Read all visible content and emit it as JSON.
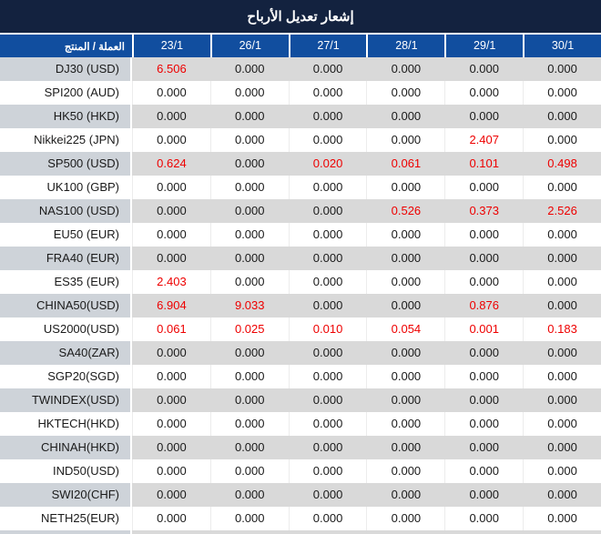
{
  "title": "إشعار تعديل الأرباح",
  "table": {
    "product_header": "العملة / المنتج",
    "date_headers": [
      "23/1",
      "26/1",
      "27/1",
      "28/1",
      "29/1",
      "30/1"
    ],
    "rows": [
      {
        "product": "DJ30 (USD)",
        "values": [
          "6.506",
          "0.000",
          "0.000",
          "0.000",
          "0.000",
          "0.000"
        ],
        "red": [
          1,
          0,
          0,
          0,
          0,
          0
        ]
      },
      {
        "product": "SPI200 (AUD)",
        "values": [
          "0.000",
          "0.000",
          "0.000",
          "0.000",
          "0.000",
          "0.000"
        ],
        "red": [
          0,
          0,
          0,
          0,
          0,
          0
        ]
      },
      {
        "product": "HK50 (HKD)",
        "values": [
          "0.000",
          "0.000",
          "0.000",
          "0.000",
          "0.000",
          "0.000"
        ],
        "red": [
          0,
          0,
          0,
          0,
          0,
          0
        ]
      },
      {
        "product": "Nikkei225 (JPN)",
        "values": [
          "0.000",
          "0.000",
          "0.000",
          "0.000",
          "2.407",
          "0.000"
        ],
        "red": [
          0,
          0,
          0,
          0,
          1,
          0
        ]
      },
      {
        "product": "SP500 (USD)",
        "values": [
          "0.624",
          "0.000",
          "0.020",
          "0.061",
          "0.101",
          "0.498"
        ],
        "red": [
          1,
          0,
          1,
          1,
          1,
          1
        ]
      },
      {
        "product": "UK100 (GBP)",
        "values": [
          "0.000",
          "0.000",
          "0.000",
          "0.000",
          "0.000",
          "0.000"
        ],
        "red": [
          0,
          0,
          0,
          0,
          0,
          0
        ]
      },
      {
        "product": "NAS100 (USD)",
        "values": [
          "0.000",
          "0.000",
          "0.000",
          "0.526",
          "0.373",
          "2.526"
        ],
        "red": [
          0,
          0,
          0,
          1,
          1,
          1
        ]
      },
      {
        "product": "EU50 (EUR)",
        "values": [
          "0.000",
          "0.000",
          "0.000",
          "0.000",
          "0.000",
          "0.000"
        ],
        "red": [
          0,
          0,
          0,
          0,
          0,
          0
        ]
      },
      {
        "product": "FRA40 (EUR)",
        "values": [
          "0.000",
          "0.000",
          "0.000",
          "0.000",
          "0.000",
          "0.000"
        ],
        "red": [
          0,
          0,
          0,
          0,
          0,
          0
        ]
      },
      {
        "product": "ES35 (EUR)",
        "values": [
          "2.403",
          "0.000",
          "0.000",
          "0.000",
          "0.000",
          "0.000"
        ],
        "red": [
          1,
          0,
          0,
          0,
          0,
          0
        ]
      },
      {
        "product": "CHINA50(USD)",
        "values": [
          "6.904",
          "9.033",
          "0.000",
          "0.000",
          "0.876",
          "0.000"
        ],
        "red": [
          1,
          1,
          0,
          0,
          1,
          0
        ]
      },
      {
        "product": "US2000(USD)",
        "values": [
          "0.061",
          "0.025",
          "0.010",
          "0.054",
          "0.001",
          "0.183"
        ],
        "red": [
          1,
          1,
          1,
          1,
          1,
          1
        ]
      },
      {
        "product": "SA40(ZAR)",
        "values": [
          "0.000",
          "0.000",
          "0.000",
          "0.000",
          "0.000",
          "0.000"
        ],
        "red": [
          0,
          0,
          0,
          0,
          0,
          0
        ]
      },
      {
        "product": "SGP20(SGD)",
        "values": [
          "0.000",
          "0.000",
          "0.000",
          "0.000",
          "0.000",
          "0.000"
        ],
        "red": [
          0,
          0,
          0,
          0,
          0,
          0
        ]
      },
      {
        "product": "TWINDEX(USD)",
        "values": [
          "0.000",
          "0.000",
          "0.000",
          "0.000",
          "0.000",
          "0.000"
        ],
        "red": [
          0,
          0,
          0,
          0,
          0,
          0
        ]
      },
      {
        "product": "HKTECH(HKD)",
        "values": [
          "0.000",
          "0.000",
          "0.000",
          "0.000",
          "0.000",
          "0.000"
        ],
        "red": [
          0,
          0,
          0,
          0,
          0,
          0
        ]
      },
      {
        "product": "CHINAH(HKD)",
        "values": [
          "0.000",
          "0.000",
          "0.000",
          "0.000",
          "0.000",
          "0.000"
        ],
        "red": [
          0,
          0,
          0,
          0,
          0,
          0
        ]
      },
      {
        "product": "IND50(USD)",
        "values": [
          "0.000",
          "0.000",
          "0.000",
          "0.000",
          "0.000",
          "0.000"
        ],
        "red": [
          0,
          0,
          0,
          0,
          0,
          0
        ]
      },
      {
        "product": "SWI20(CHF)",
        "values": [
          "0.000",
          "0.000",
          "0.000",
          "0.000",
          "0.000",
          "0.000"
        ],
        "red": [
          0,
          0,
          0,
          0,
          0,
          0
        ]
      },
      {
        "product": "NETH25(EUR)",
        "values": [
          "0.000",
          "0.000",
          "0.000",
          "0.000",
          "0.000",
          "0.000"
        ],
        "red": [
          0,
          0,
          0,
          0,
          0,
          0
        ]
      }
    ]
  },
  "colors": {
    "title_bg": "#13223f",
    "header_bg": "#114e9f",
    "row_gray": "#d9d9d9",
    "label_gray": "#ced3d9",
    "value_red": "#ee0000",
    "text_black": "#1a1a1a"
  }
}
